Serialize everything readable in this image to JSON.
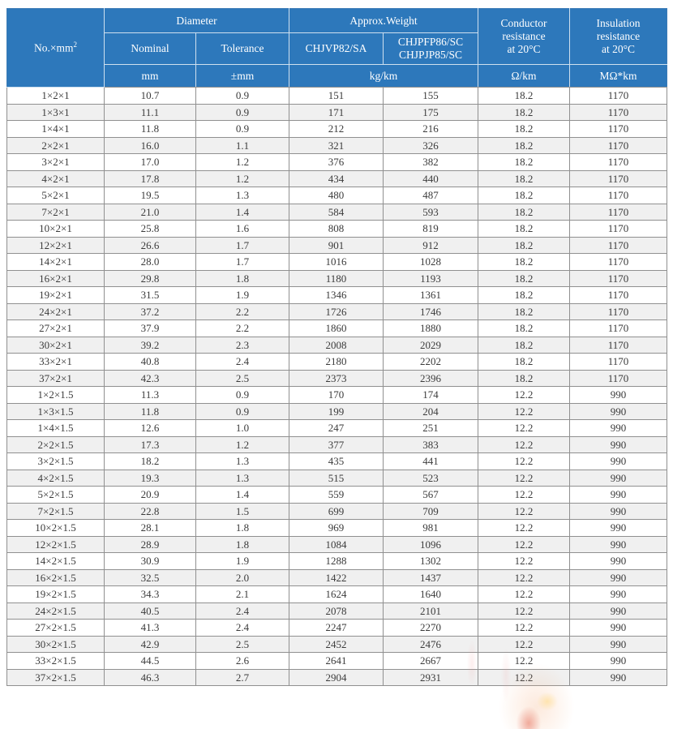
{
  "colors": {
    "header_bg": "#2d78bb",
    "header_text": "#ffffff",
    "header_line": "#cfe0ef",
    "grid_line": "#909090",
    "row_stripe": "#f0f0f0",
    "body_text": "#3b3b3b"
  },
  "table": {
    "header": {
      "no_mm_base": "No.×mm",
      "no_mm_sup": "2",
      "diameter": "Diameter",
      "nominal": "Nominal",
      "tolerance": "Tolerance",
      "approx_weight": "Approx.Weight",
      "weight_type_a": "CHJVP82/SA",
      "weight_type_b_line1": "CHJPFP86/SC",
      "weight_type_b_line2": "CHJPJP85/SC",
      "conductor_resistance_lines": [
        "Conductor",
        "resistance",
        "at 20°C"
      ],
      "insulation_resistance_lines": [
        "Insulation",
        "resistance",
        "at 20°C"
      ]
    },
    "units": {
      "nominal": "mm",
      "tolerance": "±mm",
      "weight": "kg/km",
      "conductor": "Ω/km",
      "insulation": "MΩ*km"
    },
    "rows": [
      [
        "1×2×1",
        "10.7",
        "0.9",
        "151",
        "155",
        "18.2",
        "1170"
      ],
      [
        "1×3×1",
        "11.1",
        "0.9",
        "171",
        "175",
        "18.2",
        "1170"
      ],
      [
        "1×4×1",
        "11.8",
        "0.9",
        "212",
        "216",
        "18.2",
        "1170"
      ],
      [
        "2×2×1",
        "16.0",
        "1.1",
        "321",
        "326",
        "18.2",
        "1170"
      ],
      [
        "3×2×1",
        "17.0",
        "1.2",
        "376",
        "382",
        "18.2",
        "1170"
      ],
      [
        "4×2×1",
        "17.8",
        "1.2",
        "434",
        "440",
        "18.2",
        "1170"
      ],
      [
        "5×2×1",
        "19.5",
        "1.3",
        "480",
        "487",
        "18.2",
        "1170"
      ],
      [
        "7×2×1",
        "21.0",
        "1.4",
        "584",
        "593",
        "18.2",
        "1170"
      ],
      [
        "10×2×1",
        "25.8",
        "1.6",
        "808",
        "819",
        "18.2",
        "1170"
      ],
      [
        "12×2×1",
        "26.6",
        "1.7",
        "901",
        "912",
        "18.2",
        "1170"
      ],
      [
        "14×2×1",
        "28.0",
        "1.7",
        "1016",
        "1028",
        "18.2",
        "1170"
      ],
      [
        "16×2×1",
        "29.8",
        "1.8",
        "1180",
        "1193",
        "18.2",
        "1170"
      ],
      [
        "19×2×1",
        "31.5",
        "1.9",
        "1346",
        "1361",
        "18.2",
        "1170"
      ],
      [
        "24×2×1",
        "37.2",
        "2.2",
        "1726",
        "1746",
        "18.2",
        "1170"
      ],
      [
        "27×2×1",
        "37.9",
        "2.2",
        "1860",
        "1880",
        "18.2",
        "1170"
      ],
      [
        "30×2×1",
        "39.2",
        "2.3",
        "2008",
        "2029",
        "18.2",
        "1170"
      ],
      [
        "33×2×1",
        "40.8",
        "2.4",
        "2180",
        "2202",
        "18.2",
        "1170"
      ],
      [
        "37×2×1",
        "42.3",
        "2.5",
        "2373",
        "2396",
        "18.2",
        "1170"
      ],
      [
        "1×2×1.5",
        "11.3",
        "0.9",
        "170",
        "174",
        "12.2",
        "990"
      ],
      [
        "1×3×1.5",
        "11.8",
        "0.9",
        "199",
        "204",
        "12.2",
        "990"
      ],
      [
        "1×4×1.5",
        "12.6",
        "1.0",
        "247",
        "251",
        "12.2",
        "990"
      ],
      [
        "2×2×1.5",
        "17.3",
        "1.2",
        "377",
        "383",
        "12.2",
        "990"
      ],
      [
        "3×2×1.5",
        "18.2",
        "1.3",
        "435",
        "441",
        "12.2",
        "990"
      ],
      [
        "4×2×1.5",
        "19.3",
        "1.3",
        "515",
        "523",
        "12.2",
        "990"
      ],
      [
        "5×2×1.5",
        "20.9",
        "1.4",
        "559",
        "567",
        "12.2",
        "990"
      ],
      [
        "7×2×1.5",
        "22.8",
        "1.5",
        "699",
        "709",
        "12.2",
        "990"
      ],
      [
        "10×2×1.5",
        "28.1",
        "1.8",
        "969",
        "981",
        "12.2",
        "990"
      ],
      [
        "12×2×1.5",
        "28.9",
        "1.8",
        "1084",
        "1096",
        "12.2",
        "990"
      ],
      [
        "14×2×1.5",
        "30.9",
        "1.9",
        "1288",
        "1302",
        "12.2",
        "990"
      ],
      [
        "16×2×1.5",
        "32.5",
        "2.0",
        "1422",
        "1437",
        "12.2",
        "990"
      ],
      [
        "19×2×1.5",
        "34.3",
        "2.1",
        "1624",
        "1640",
        "12.2",
        "990"
      ],
      [
        "24×2×1.5",
        "40.5",
        "2.4",
        "2078",
        "2101",
        "12.2",
        "990"
      ],
      [
        "27×2×1.5",
        "41.3",
        "2.4",
        "2247",
        "2270",
        "12.2",
        "990"
      ],
      [
        "30×2×1.5",
        "42.9",
        "2.5",
        "2452",
        "2476",
        "12.2",
        "990"
      ],
      [
        "33×2×1.5",
        "44.5",
        "2.6",
        "2641",
        "2667",
        "12.2",
        "990"
      ],
      [
        "37×2×1.5",
        "46.3",
        "2.7",
        "2904",
        "2931",
        "12.2",
        "990"
      ]
    ]
  }
}
